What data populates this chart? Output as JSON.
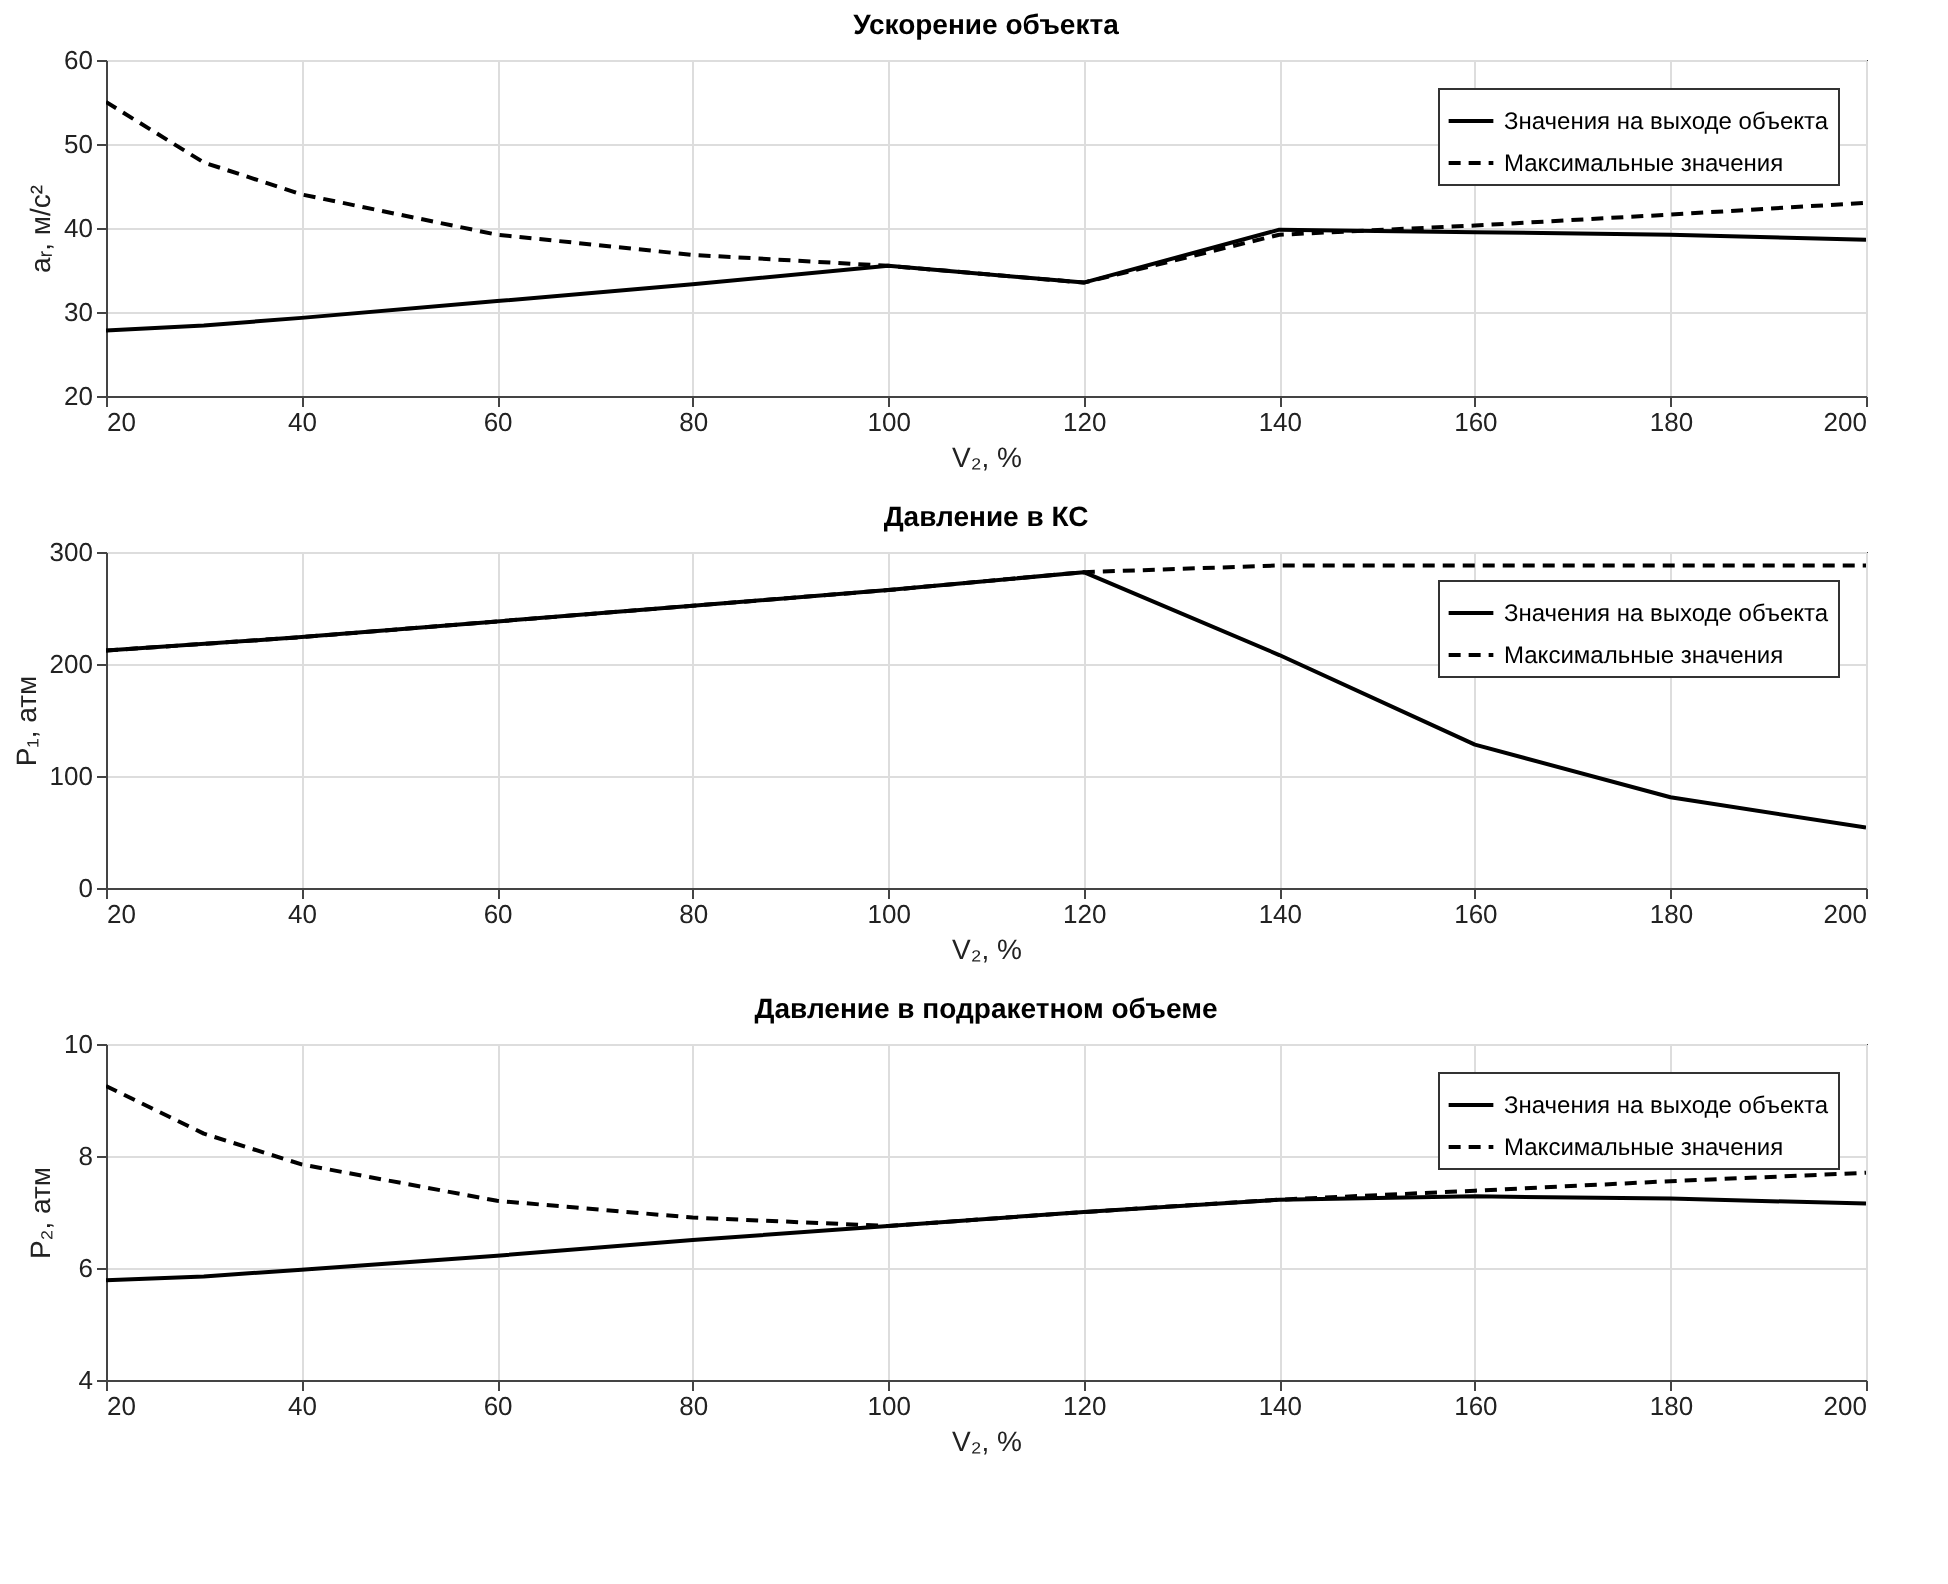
{
  "chart_data": [
    {
      "type": "line",
      "title": "Ускорение объекта",
      "xlabel": "V₂, %",
      "ylabel": "aᵣ, м/с²",
      "x": [
        20,
        30,
        40,
        60,
        80,
        100,
        120,
        140,
        160,
        180,
        200
      ],
      "xlim": [
        20,
        200
      ],
      "xticks": [
        20,
        40,
        60,
        80,
        100,
        120,
        140,
        160,
        180,
        200
      ],
      "ylim": [
        20,
        60
      ],
      "yticks": [
        20,
        30,
        40,
        50,
        60
      ],
      "grid": true,
      "legend": "top right",
      "series": [
        {
          "name": "Значения на выходе объекта",
          "color": "#000000",
          "line_style": "solid",
          "values": [
            27.8,
            28.4,
            29.3,
            31.3,
            33.3,
            35.5,
            33.5,
            39.8,
            39.5,
            39.2,
            38.6
          ]
        },
        {
          "name": "Максимальные значения",
          "color": "#000000",
          "line_style": "dashed",
          "values": [
            55,
            47.8,
            44,
            39.2,
            36.8,
            35.5,
            33.5,
            39.2,
            40.3,
            41.6,
            43
          ]
        }
      ]
    },
    {
      "type": "line",
      "title": "Давление в КС",
      "xlabel": "V₂, %",
      "ylabel": "P₁, атм",
      "x": [
        20,
        40,
        60,
        80,
        100,
        120,
        140,
        160,
        180,
        200
      ],
      "xlim": [
        20,
        200
      ],
      "xticks": [
        20,
        40,
        60,
        80,
        100,
        120,
        140,
        160,
        180,
        200
      ],
      "ylim": [
        0,
        300
      ],
      "yticks": [
        0,
        100,
        200,
        300
      ],
      "grid": true,
      "legend": "top right",
      "series": [
        {
          "name": "Значения на выходе объекта",
          "color": "#000000",
          "line_style": "solid",
          "values": [
            212,
            224,
            238,
            252,
            266,
            282,
            208,
            128,
            81,
            54
          ]
        },
        {
          "name": "Максимальные значения",
          "color": "#000000",
          "line_style": "dashed",
          "values": [
            212,
            224,
            238,
            252,
            266,
            282,
            288,
            288,
            288,
            288
          ]
        }
      ]
    },
    {
      "type": "line",
      "title": "Давление в подракетном объеме",
      "xlabel": "V₂, %",
      "ylabel": "P₂, атм",
      "x": [
        20,
        30,
        40,
        60,
        80,
        100,
        120,
        140,
        160,
        180,
        200
      ],
      "xlim": [
        20,
        200
      ],
      "xticks": [
        20,
        40,
        60,
        80,
        100,
        120,
        140,
        160,
        180,
        200
      ],
      "ylim": [
        4,
        10
      ],
      "yticks": [
        4,
        6,
        8,
        10
      ],
      "grid": true,
      "legend": "top right",
      "series": [
        {
          "name": "Значения на выходе объекта",
          "color": "#000000",
          "line_style": "solid",
          "values": [
            5.78,
            5.85,
            5.97,
            6.22,
            6.5,
            6.75,
            7.0,
            7.22,
            7.28,
            7.24,
            7.15
          ]
        },
        {
          "name": "Максимальные значения",
          "color": "#000000",
          "line_style": "dashed",
          "values": [
            9.25,
            8.4,
            7.85,
            7.2,
            6.9,
            6.75,
            7.0,
            7.22,
            7.38,
            7.55,
            7.7
          ]
        }
      ]
    }
  ]
}
